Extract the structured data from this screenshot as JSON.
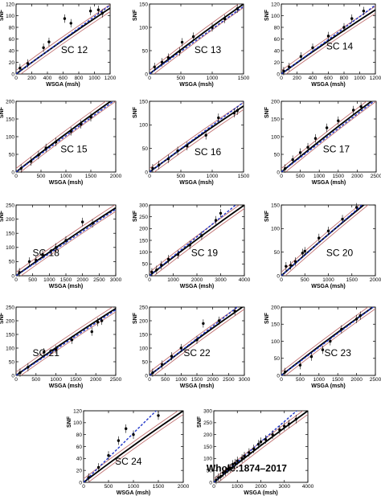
{
  "colors": {
    "fit": "#000000",
    "confidence_band": "#c07070",
    "linear_fit": "#1f35c8",
    "points": "#000000",
    "error_bars": "#000000"
  },
  "chart_data": [
    {
      "type": "scatter",
      "label": "SC 12",
      "xlabel": "WSGA (msh)",
      "ylabel": "SNF",
      "xlim": [
        0,
        1200
      ],
      "ylim": [
        0,
        120
      ],
      "xticks": [
        0,
        200,
        400,
        600,
        800,
        1000,
        1200
      ],
      "yticks": [
        0,
        20,
        40,
        60,
        80,
        100,
        120
      ],
      "x": [
        50,
        150,
        350,
        420,
        620,
        700,
        950,
        1050,
        1100
      ],
      "y": [
        10,
        18,
        45,
        55,
        95,
        87,
        108,
        110,
        104
      ],
      "fit_curve": [
        [
          0,
          0
        ],
        [
          1200,
          113
        ]
      ],
      "linear_fit": [
        [
          0,
          0
        ],
        [
          1200,
          118
        ]
      ]
    },
    {
      "type": "scatter",
      "label": "SC 13",
      "xlabel": "WSGA (msh)",
      "ylabel": "SNF",
      "xlim": [
        0,
        1500
      ],
      "ylim": [
        0,
        150
      ],
      "xticks": [
        0,
        500,
        1000,
        1500
      ],
      "yticks": [
        0,
        50,
        100,
        150
      ],
      "x": [
        80,
        200,
        300,
        480,
        520,
        700,
        1000,
        1200,
        1400
      ],
      "y": [
        15,
        25,
        35,
        48,
        68,
        80,
        100,
        118,
        140
      ],
      "fit_curve": [
        [
          0,
          0
        ],
        [
          1500,
          150
        ]
      ],
      "linear_fit": [
        [
          0,
          0
        ],
        [
          1500,
          145
        ]
      ]
    },
    {
      "type": "scatter",
      "label": "SC 14",
      "xlabel": "WSGA (msh)",
      "ylabel": "SNF",
      "xlim": [
        0,
        1200
      ],
      "ylim": [
        0,
        120
      ],
      "xticks": [
        0,
        200,
        400,
        600,
        800,
        1000,
        1200
      ],
      "yticks": [
        0,
        20,
        40,
        60,
        80,
        100,
        120
      ],
      "x": [
        30,
        100,
        250,
        400,
        600,
        800,
        900,
        1050
      ],
      "y": [
        5,
        12,
        30,
        45,
        65,
        80,
        95,
        108
      ],
      "fit_curve": [
        [
          0,
          0
        ],
        [
          1200,
          110
        ]
      ],
      "linear_fit": [
        [
          0,
          0
        ],
        [
          1200,
          118
        ]
      ]
    },
    {
      "type": "scatter",
      "label": "SC 15",
      "xlabel": "WSGA (msh)",
      "ylabel": "SNF",
      "xlim": [
        0,
        2000
      ],
      "ylim": [
        0,
        200
      ],
      "xticks": [
        0,
        500,
        1000,
        1500,
        2000
      ],
      "yticks": [
        0,
        50,
        100,
        150,
        200
      ],
      "x": [
        100,
        300,
        450,
        600,
        800,
        1100,
        1300,
        1500
      ],
      "y": [
        10,
        30,
        48,
        68,
        85,
        115,
        135,
        155
      ],
      "fit_curve": [
        [
          0,
          0
        ],
        [
          2000,
          210
        ]
      ],
      "linear_fit": [
        [
          0,
          0
        ],
        [
          2000,
          205
        ]
      ]
    },
    {
      "type": "scatter",
      "label": "SC 16",
      "xlabel": "WSGA (msh)",
      "ylabel": "SNF",
      "xlim": [
        0,
        1500
      ],
      "ylim": [
        0,
        150
      ],
      "xticks": [
        0,
        500,
        1000,
        1500
      ],
      "yticks": [
        0,
        50,
        100,
        150
      ],
      "x": [
        50,
        150,
        300,
        450,
        600,
        900,
        1100,
        1350,
        1400
      ],
      "y": [
        8,
        15,
        28,
        45,
        55,
        78,
        115,
        125,
        130
      ],
      "fit_curve": [
        [
          0,
          0
        ],
        [
          1500,
          140
        ]
      ],
      "linear_fit": [
        [
          0,
          0
        ],
        [
          1500,
          148
        ]
      ]
    },
    {
      "type": "scatter",
      "label": "SC 17",
      "xlabel": "WSGA (msh)",
      "ylabel": "SNF",
      "xlim": [
        0,
        2500
      ],
      "ylim": [
        0,
        200
      ],
      "xticks": [
        0,
        500,
        1000,
        1500,
        2000,
        2500
      ],
      "yticks": [
        0,
        50,
        100,
        150,
        200
      ],
      "x": [
        100,
        300,
        500,
        700,
        900,
        1200,
        1500,
        1900,
        2100
      ],
      "y": [
        10,
        35,
        55,
        70,
        95,
        125,
        145,
        175,
        185
      ],
      "fit_curve": [
        [
          0,
          0
        ],
        [
          2500,
          210
        ]
      ],
      "linear_fit": [
        [
          0,
          0
        ],
        [
          2500,
          205
        ]
      ]
    },
    {
      "type": "scatter",
      "label": "SC 18",
      "xlabel": "WSGA (msh)",
      "ylabel": "SNF",
      "xlim": [
        0,
        3000
      ],
      "ylim": [
        0,
        250
      ],
      "xticks": [
        0,
        500,
        1000,
        1500,
        2000,
        2500,
        3000
      ],
      "yticks": [
        0,
        50,
        100,
        150,
        200,
        250
      ],
      "x": [
        100,
        400,
        600,
        800,
        1200,
        1500,
        2000,
        2300
      ],
      "y": [
        12,
        50,
        55,
        75,
        100,
        125,
        190,
        185
      ],
      "fit_curve": [
        [
          0,
          0
        ],
        [
          3000,
          240
        ]
      ],
      "linear_fit": [
        [
          0,
          0
        ],
        [
          3000,
          235
        ]
      ]
    },
    {
      "type": "scatter",
      "label": "SC 19",
      "xlabel": "WSGA (msh)",
      "ylabel": "SNF",
      "xlim": [
        0,
        4000
      ],
      "ylim": [
        0,
        300
      ],
      "xticks": [
        0,
        1000,
        2000,
        3000,
        4000
      ],
      "yticks": [
        0,
        50,
        100,
        150,
        200,
        250,
        300
      ],
      "x": [
        100,
        300,
        500,
        800,
        1200,
        1700,
        2200,
        2800,
        3000
      ],
      "y": [
        15,
        25,
        45,
        70,
        90,
        130,
        170,
        235,
        265
      ],
      "fit_curve": [
        [
          0,
          0
        ],
        [
          4000,
          300
        ]
      ],
      "linear_fit": [
        [
          0,
          0
        ],
        [
          4000,
          330
        ]
      ]
    },
    {
      "type": "scatter",
      "label": "SC 20",
      "xlabel": "WSGA (msh)",
      "ylabel": "SNF",
      "xlim": [
        0,
        2000
      ],
      "ylim": [
        0,
        150
      ],
      "xticks": [
        0,
        500,
        1000,
        1500,
        2000
      ],
      "yticks": [
        0,
        50,
        100,
        150
      ],
      "x": [
        100,
        200,
        300,
        450,
        500,
        800,
        1000,
        1300,
        1600
      ],
      "y": [
        20,
        22,
        30,
        48,
        52,
        80,
        95,
        120,
        145
      ],
      "fit_curve": [
        [
          0,
          0
        ],
        [
          2000,
          170
        ]
      ],
      "linear_fit": [
        [
          0,
          0
        ],
        [
          2000,
          175
        ]
      ]
    },
    {
      "type": "scatter",
      "label": "SC 21",
      "xlabel": "WSGA (msh)",
      "ylabel": "SNF",
      "xlim": [
        0,
        2500
      ],
      "ylim": [
        0,
        250
      ],
      "xticks": [
        0,
        500,
        1000,
        1500,
        2000,
        2500
      ],
      "yticks": [
        0,
        50,
        100,
        150,
        200,
        250
      ],
      "x": [
        100,
        300,
        700,
        1000,
        1400,
        1900,
        2050,
        2150
      ],
      "y": [
        10,
        30,
        85,
        95,
        130,
        160,
        195,
        200
      ],
      "fit_curve": [
        [
          0,
          0
        ],
        [
          2500,
          245
        ]
      ],
      "linear_fit": [
        [
          0,
          0
        ],
        [
          2500,
          240
        ]
      ]
    },
    {
      "type": "scatter",
      "label": "SC 22",
      "xlabel": "WSGA (msh)",
      "ylabel": "SNF",
      "xlim": [
        0,
        3000
      ],
      "ylim": [
        0,
        250
      ],
      "xticks": [
        0,
        500,
        1000,
        1500,
        2000,
        2500,
        3000
      ],
      "yticks": [
        0,
        50,
        100,
        150,
        200,
        250
      ],
      "x": [
        100,
        400,
        700,
        1000,
        1500,
        1700,
        2200,
        2700
      ],
      "y": [
        10,
        40,
        70,
        100,
        130,
        190,
        200,
        235
      ],
      "fit_curve": [
        [
          0,
          0
        ],
        [
          3000,
          255
        ]
      ],
      "linear_fit": [
        [
          0,
          0
        ],
        [
          3000,
          270
        ]
      ]
    },
    {
      "type": "scatter",
      "label": "SC 23",
      "xlabel": "WSGA (msh)",
      "ylabel": "SNF",
      "xlim": [
        0,
        2500
      ],
      "ylim": [
        0,
        200
      ],
      "xticks": [
        0,
        500,
        1000,
        1500,
        2000,
        2500
      ],
      "yticks": [
        0,
        50,
        100,
        150,
        200
      ],
      "x": [
        100,
        500,
        800,
        1100,
        1300,
        1600,
        2000,
        2100
      ],
      "y": [
        10,
        30,
        55,
        75,
        100,
        135,
        165,
        175
      ],
      "fit_curve": [
        [
          0,
          0
        ],
        [
          2500,
          205
        ]
      ],
      "linear_fit": [
        [
          0,
          0
        ],
        [
          2500,
          205
        ]
      ]
    },
    {
      "type": "scatter",
      "label": "SC 24",
      "xlabel": "WSGA (msh)",
      "ylabel": "SNF",
      "xlim": [
        0,
        2000
      ],
      "ylim": [
        0,
        120
      ],
      "xticks": [
        0,
        500,
        1000,
        1500,
        2000
      ],
      "yticks": [
        0,
        20,
        40,
        60,
        80,
        100,
        120
      ],
      "x": [
        100,
        300,
        500,
        700,
        850,
        1000,
        1500
      ],
      "y": [
        8,
        25,
        45,
        70,
        90,
        80,
        112
      ],
      "fit_curve": [
        [
          0,
          0
        ],
        [
          2000,
          120
        ]
      ],
      "linear_fit": [
        [
          0,
          0
        ],
        [
          2000,
          165
        ]
      ]
    },
    {
      "type": "scatter",
      "label": "Whole:1874–2017",
      "xlabel": "WSGA (msh)",
      "ylabel": "SNF",
      "xlim": [
        0,
        4000
      ],
      "ylim": [
        0,
        300
      ],
      "xticks": [
        0,
        1000,
        2000,
        3000,
        4000
      ],
      "yticks": [
        0,
        50,
        100,
        150,
        200,
        250,
        300
      ],
      "x": [
        100,
        200,
        300,
        400,
        500,
        600,
        700,
        800,
        900,
        1000,
        1200,
        1300,
        1500,
        1700,
        1900,
        2000,
        2200,
        2500,
        2800,
        3000,
        3200,
        3500
      ],
      "y": [
        10,
        20,
        25,
        40,
        45,
        55,
        60,
        75,
        80,
        90,
        100,
        110,
        125,
        140,
        160,
        170,
        180,
        200,
        220,
        235,
        245,
        265
      ],
      "fit_curve": [
        [
          0,
          0
        ],
        [
          4000,
          300
        ]
      ],
      "linear_fit": [
        [
          0,
          0
        ],
        [
          4000,
          340
        ]
      ]
    }
  ]
}
